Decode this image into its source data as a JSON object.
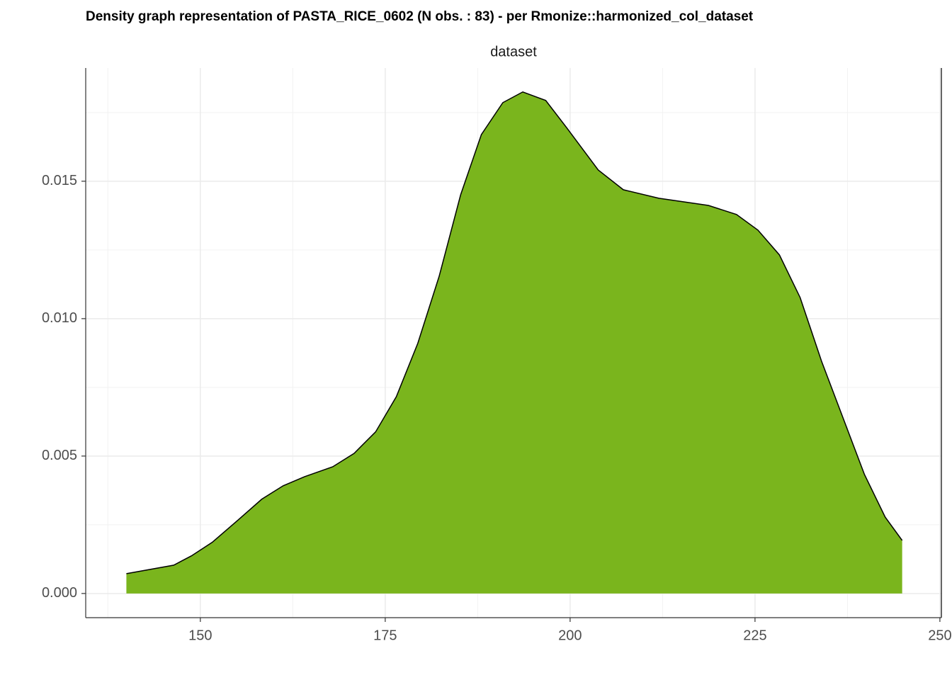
{
  "chart_data": {
    "type": "area",
    "title": "Density graph representation of PASTA_RICE_0602 (N obs. : 83) - per Rmonize::harmonized_col_dataset",
    "facet_label": "dataset",
    "color": "#7ab51d",
    "line_color": "#000000",
    "grid": true,
    "x": [
      140,
      146.4,
      148.8,
      151.6,
      155,
      158.3,
      161.2,
      164.1,
      167.9,
      170.8,
      173.7,
      176.5,
      179.4,
      182.3,
      185.2,
      188,
      190.9,
      193.6,
      196.7,
      199.5,
      203.8,
      207.2,
      212,
      218.7,
      222.5,
      225.4,
      228.3,
      231.1,
      234,
      236.9,
      239.8,
      242.6,
      244.9
    ],
    "values": [
      0.00072,
      0.00103,
      0.00137,
      0.00186,
      0.00265,
      0.00343,
      0.00392,
      0.00425,
      0.00461,
      0.0051,
      0.00588,
      0.00716,
      0.0091,
      0.01155,
      0.01451,
      0.0167,
      0.01786,
      0.01825,
      0.01794,
      0.01696,
      0.01541,
      0.01469,
      0.01438,
      0.01412,
      0.01379,
      0.01322,
      0.01232,
      0.01077,
      0.00845,
      0.00639,
      0.00433,
      0.00278,
      0.00193
    ],
    "xlim": [
      134.5,
      250.2
    ],
    "ylim": [
      -0.00088,
      0.01912
    ],
    "xticks": [
      150,
      175,
      200,
      225,
      250
    ],
    "yticks": [
      {
        "value": 0,
        "label": "0.000"
      },
      {
        "value": 0.005,
        "label": "0.005"
      },
      {
        "value": 0.01,
        "label": "0.010"
      },
      {
        "value": 0.015,
        "label": "0.015"
      }
    ],
    "x_minor_ticks": [
      137.5,
      162.5,
      187.5,
      212.5,
      237.5
    ],
    "y_minor_ticks": [
      0.0025,
      0.0075,
      0.0125,
      0.0175
    ]
  }
}
